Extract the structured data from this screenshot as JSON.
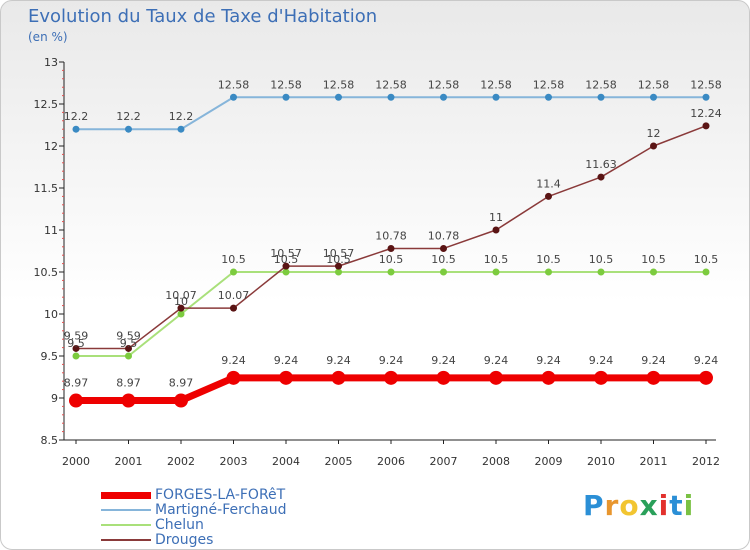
{
  "header": {
    "title": "Evolution du Taux de Taxe d'Habitation",
    "unit_label": "(en %)"
  },
  "logo": {
    "text": "Proxiti",
    "letter_colors": [
      "#2b8fd6",
      "#e8962e",
      "#f2c531",
      "#2aa05a",
      "#e2312d",
      "#2b8fd6",
      "#7ac143"
    ]
  },
  "chart_data": {
    "type": "line",
    "title": "Evolution du Taux de Taxe d'Habitation",
    "ylabel": "(en %)",
    "xlabel": "",
    "x": [
      2000,
      2001,
      2002,
      2003,
      2004,
      2005,
      2006,
      2007,
      2008,
      2009,
      2010,
      2011,
      2012
    ],
    "ylim": [
      8.5,
      13
    ],
    "yticks": [
      8.5,
      9,
      9.5,
      10,
      10.5,
      11,
      11.5,
      12,
      12.5,
      13
    ],
    "grid": false,
    "legend_position": "bottom-left",
    "series": [
      {
        "name": "FORGES-LA-FORêT",
        "color": "#ee0000",
        "line_width": 7,
        "marker_radius": 7,
        "values": [
          8.97,
          8.97,
          8.97,
          9.24,
          9.24,
          9.24,
          9.24,
          9.24,
          9.24,
          9.24,
          9.24,
          9.24,
          9.24
        ],
        "labels": [
          "8.97",
          "8.97",
          "8.97",
          "9.24",
          "9.24",
          "9.24",
          "9.24",
          "9.24",
          "9.24",
          "9.24",
          "9.24",
          "9.24",
          "9.24"
        ]
      },
      {
        "name": "Martigné-Ferchaud",
        "color": "#86b5da",
        "marker_color": "#3a8ac3",
        "line_width": 2,
        "marker_radius": 3.5,
        "values": [
          12.2,
          12.2,
          12.2,
          12.58,
          12.58,
          12.58,
          12.58,
          12.58,
          12.58,
          12.58,
          12.58,
          12.58,
          12.58
        ],
        "labels": [
          "12.2",
          "12.2",
          "12.2",
          "12.58",
          "12.58",
          "12.58",
          "12.58",
          "12.58",
          "12.58",
          "12.58",
          "12.58",
          "12.58",
          "12.58"
        ]
      },
      {
        "name": "Chelun",
        "color": "#a9e07a",
        "marker_color": "#7ccb3e",
        "line_width": 2,
        "marker_radius": 3.5,
        "values": [
          9.5,
          9.5,
          10.0,
          10.5,
          10.5,
          10.5,
          10.5,
          10.5,
          10.5,
          10.5,
          10.5,
          10.5,
          10.5
        ],
        "labels": [
          "9.5",
          "9.5",
          "10",
          "10.5",
          "10.5",
          "10.5",
          "10.5",
          "10.5",
          "10.5",
          "10.5",
          "10.5",
          "10.5",
          "10.5"
        ]
      },
      {
        "name": "Drouges",
        "color": "#8a3a3a",
        "marker_color": "#5a1414",
        "line_width": 1.5,
        "marker_radius": 3.5,
        "values": [
          9.59,
          9.59,
          10.07,
          10.07,
          10.57,
          10.57,
          10.78,
          10.78,
          11.0,
          11.4,
          11.63,
          12.0,
          12.24
        ],
        "labels": [
          "9.59",
          "9.59",
          "10.07",
          "10.07",
          "10.57",
          "10.57",
          "10.78",
          "10.78",
          "11",
          "11.4",
          "11.63",
          "12",
          "12.24"
        ]
      }
    ]
  }
}
